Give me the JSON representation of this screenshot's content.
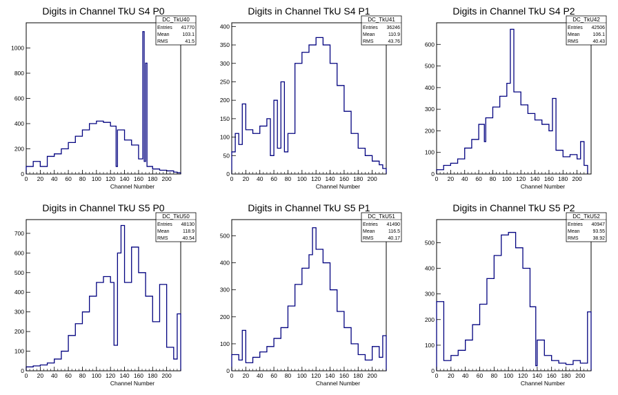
{
  "chart_data": [
    {
      "type": "bar",
      "title": "Digits in Channel TkU S4 P0",
      "xlabel": "Channel Number",
      "ylabel": "",
      "xlim": [
        0,
        220
      ],
      "ylim": [
        0,
        1200
      ],
      "xticks": [
        0,
        20,
        40,
        60,
        80,
        100,
        120,
        140,
        160,
        180,
        200
      ],
      "yticks": [
        0,
        200,
        400,
        600,
        800,
        1000
      ],
      "stats": {
        "name": "DC_TkU40",
        "entries": "41770",
        "mean": "103.1",
        "rms": "41.5"
      },
      "x": [
        0,
        10,
        20,
        30,
        40,
        50,
        60,
        70,
        80,
        90,
        100,
        110,
        120,
        128,
        130,
        140,
        150,
        160,
        166,
        168,
        170,
        172,
        180,
        190,
        200,
        210,
        215
      ],
      "values": [
        60,
        100,
        60,
        140,
        160,
        200,
        250,
        300,
        350,
        400,
        420,
        410,
        380,
        60,
        350,
        270,
        230,
        120,
        1130,
        100,
        880,
        60,
        40,
        30,
        25,
        15,
        10
      ]
    },
    {
      "type": "bar",
      "title": "Digits in Channel TkU S4 P1",
      "xlabel": "Channel Number",
      "ylabel": "",
      "xlim": [
        0,
        220
      ],
      "ylim": [
        0,
        410
      ],
      "xticks": [
        0,
        20,
        40,
        60,
        80,
        100,
        120,
        140,
        160,
        180,
        200
      ],
      "yticks": [
        0,
        50,
        100,
        150,
        200,
        250,
        300,
        350,
        400
      ],
      "stats": {
        "name": "DC_TkU41",
        "entries": "36246",
        "mean": "110.9",
        "rms": "43.76"
      },
      "x": [
        0,
        5,
        10,
        15,
        20,
        30,
        40,
        50,
        55,
        60,
        65,
        70,
        75,
        80,
        90,
        100,
        110,
        120,
        130,
        140,
        150,
        160,
        170,
        180,
        190,
        200,
        210,
        215
      ],
      "values": [
        60,
        110,
        80,
        190,
        120,
        110,
        130,
        150,
        50,
        200,
        70,
        250,
        60,
        110,
        300,
        330,
        350,
        370,
        350,
        300,
        240,
        170,
        110,
        70,
        50,
        35,
        25,
        15
      ]
    },
    {
      "type": "bar",
      "title": "Digits in Channel TkU S4 P2",
      "xlabel": "Channel Number",
      "ylabel": "",
      "xlim": [
        0,
        220
      ],
      "ylim": [
        0,
        700
      ],
      "xticks": [
        0,
        20,
        40,
        60,
        80,
        100,
        120,
        140,
        160,
        180,
        200
      ],
      "yticks": [
        0,
        100,
        200,
        300,
        400,
        500,
        600
      ],
      "stats": {
        "name": "DC_TkU42",
        "entries": "42506",
        "mean": "106.1",
        "rms": "40.43"
      },
      "x": [
        0,
        10,
        20,
        30,
        40,
        50,
        60,
        68,
        70,
        80,
        90,
        100,
        105,
        110,
        120,
        130,
        140,
        150,
        160,
        165,
        170,
        180,
        190,
        200,
        205,
        210
      ],
      "values": [
        20,
        40,
        50,
        70,
        120,
        160,
        230,
        150,
        260,
        310,
        360,
        420,
        670,
        380,
        320,
        280,
        250,
        230,
        200,
        350,
        110,
        80,
        90,
        70,
        150,
        40
      ]
    },
    {
      "type": "bar",
      "title": "Digits in Channel TkU S5 P0",
      "xlabel": "Channel Number",
      "ylabel": "",
      "xlim": [
        0,
        220
      ],
      "ylim": [
        0,
        770
      ],
      "xticks": [
        0,
        20,
        40,
        60,
        80,
        100,
        120,
        140,
        160,
        180,
        200
      ],
      "yticks": [
        0,
        100,
        200,
        300,
        400,
        500,
        600,
        700
      ],
      "stats": {
        "name": "DC_TkU50",
        "entries": "48130",
        "mean": "118.9",
        "rms": "40.54"
      },
      "x": [
        0,
        10,
        20,
        30,
        40,
        50,
        60,
        70,
        80,
        90,
        100,
        110,
        120,
        125,
        130,
        135,
        140,
        150,
        160,
        170,
        180,
        190,
        200,
        210,
        215
      ],
      "values": [
        20,
        25,
        30,
        40,
        60,
        100,
        180,
        240,
        300,
        380,
        450,
        480,
        450,
        130,
        600,
        740,
        450,
        630,
        500,
        380,
        250,
        440,
        120,
        60,
        290
      ]
    },
    {
      "type": "bar",
      "title": "Digits in Channel TkU S5 P1",
      "xlabel": "Channel Number",
      "ylabel": "",
      "xlim": [
        0,
        220
      ],
      "ylim": [
        0,
        560
      ],
      "xticks": [
        0,
        20,
        40,
        60,
        80,
        100,
        120,
        140,
        160,
        180,
        200
      ],
      "yticks": [
        0,
        100,
        200,
        300,
        400,
        500
      ],
      "stats": {
        "name": "DC_TkU51",
        "entries": "41490",
        "mean": "116.5",
        "rms": "40.17"
      },
      "x": [
        0,
        10,
        15,
        20,
        30,
        40,
        50,
        60,
        70,
        80,
        90,
        100,
        110,
        115,
        120,
        130,
        140,
        150,
        160,
        170,
        180,
        190,
        200,
        210,
        215
      ],
      "values": [
        60,
        40,
        150,
        30,
        50,
        70,
        90,
        120,
        160,
        240,
        320,
        380,
        430,
        530,
        450,
        400,
        300,
        220,
        160,
        100,
        60,
        40,
        90,
        50,
        130
      ]
    },
    {
      "type": "bar",
      "title": "Digits in Channel TkU S5 P2",
      "xlabel": "Channel Number",
      "ylabel": "",
      "xlim": [
        0,
        215
      ],
      "ylim": [
        0,
        590
      ],
      "xticks": [
        0,
        20,
        40,
        60,
        80,
        100,
        120,
        140,
        160,
        180,
        200
      ],
      "yticks": [
        0,
        100,
        200,
        300,
        400,
        500
      ],
      "stats": {
        "name": "DC_TkU52",
        "entries": "40947",
        "mean": "93.55",
        "rms": "38.92"
      },
      "x": [
        0,
        10,
        20,
        30,
        40,
        50,
        60,
        70,
        80,
        90,
        100,
        110,
        120,
        130,
        138,
        140,
        150,
        160,
        170,
        180,
        190,
        200,
        210
      ],
      "values": [
        270,
        40,
        60,
        80,
        120,
        180,
        260,
        360,
        450,
        530,
        540,
        480,
        400,
        250,
        20,
        120,
        60,
        40,
        30,
        25,
        40,
        30,
        230
      ]
    }
  ]
}
